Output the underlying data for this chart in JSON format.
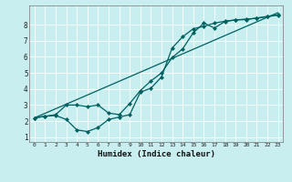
{
  "xlabel": "Humidex (Indice chaleur)",
  "xlim": [
    -0.5,
    23.5
  ],
  "ylim": [
    0.7,
    9.2
  ],
  "yticks": [
    1,
    2,
    3,
    4,
    5,
    6,
    7,
    8
  ],
  "xticks": [
    0,
    1,
    2,
    3,
    4,
    5,
    6,
    7,
    8,
    9,
    10,
    11,
    12,
    13,
    14,
    15,
    16,
    17,
    18,
    19,
    20,
    21,
    22,
    23
  ],
  "bg_color": "#c8eef0",
  "grid_color": "#ffffff",
  "line_color": "#006060",
  "line1_x": [
    0,
    1,
    2,
    3,
    4,
    5,
    6,
    7,
    8,
    9,
    10,
    11,
    12,
    13,
    14,
    15,
    16,
    17,
    18,
    19,
    20,
    21,
    22,
    23
  ],
  "line1_y": [
    2.2,
    2.3,
    2.4,
    3.0,
    3.0,
    2.9,
    3.0,
    2.5,
    2.4,
    3.1,
    3.9,
    4.5,
    5.0,
    5.95,
    6.5,
    7.5,
    8.1,
    7.8,
    8.2,
    8.3,
    8.35,
    8.4,
    8.5,
    8.6
  ],
  "line2_x": [
    0,
    1,
    2,
    3,
    4,
    5,
    6,
    7,
    8,
    9,
    10,
    11,
    12,
    13,
    14,
    15,
    16,
    17,
    18,
    19,
    20,
    21,
    22,
    23
  ],
  "line2_y": [
    2.2,
    2.3,
    2.35,
    2.1,
    1.45,
    1.35,
    1.6,
    2.1,
    2.25,
    2.4,
    3.8,
    4.05,
    4.75,
    6.55,
    7.25,
    7.75,
    7.9,
    8.1,
    8.22,
    8.3,
    8.32,
    8.42,
    8.52,
    8.62
  ],
  "line3_x": [
    0,
    23
  ],
  "line3_y": [
    2.2,
    8.75
  ]
}
